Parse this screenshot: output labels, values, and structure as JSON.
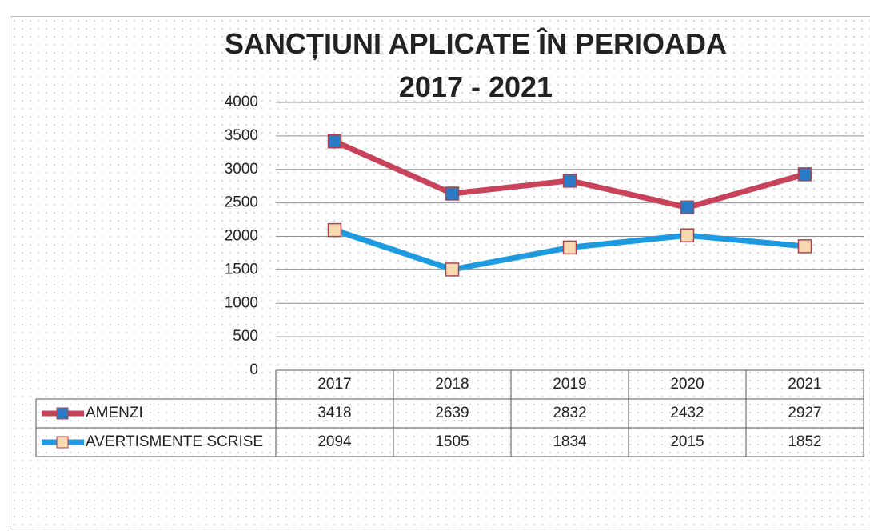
{
  "chart_data": {
    "type": "line",
    "title": "SANCȚIUNI APLICATE ÎN PERIOADA 2017 - 2021",
    "categories": [
      "2017",
      "2018",
      "2019",
      "2020",
      "2021"
    ],
    "series": [
      {
        "name": "AMENZI",
        "color": "#c8425a",
        "marker_color": "#2b7bc4",
        "values": [
          3418,
          2639,
          2832,
          2432,
          2927
        ]
      },
      {
        "name": "AVERTISMENTE SCRISE",
        "color": "#1e9be0",
        "marker_color": "#f8d9b0",
        "values": [
          2094,
          1505,
          1834,
          2015,
          1852
        ]
      }
    ],
    "ylim": [
      0,
      4000
    ],
    "yticks": [
      0,
      500,
      1000,
      1500,
      2000,
      2500,
      3000,
      3500,
      4000
    ],
    "grid": true,
    "data_table": true
  }
}
